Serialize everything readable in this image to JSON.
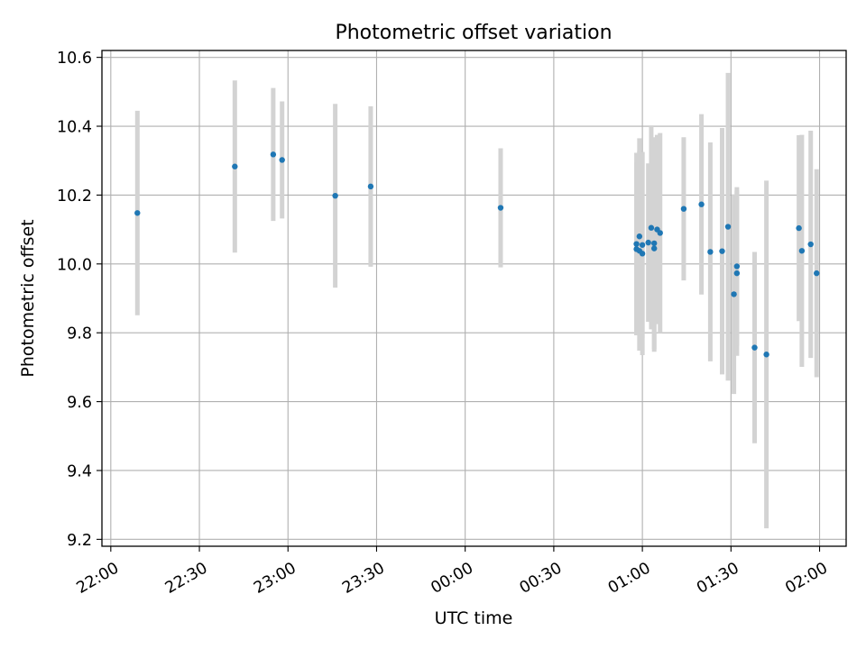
{
  "chart_data": {
    "type": "scatter",
    "title": "Photometric offset variation",
    "xlabel": "UTC time",
    "ylabel": "Photometric offset",
    "x_unit": "UTC time of day (HH:MM); ticks after 00:00 fall on the following day",
    "xlim": [
      "21:57",
      "24:00+02:09"
    ],
    "ylim": [
      9.18,
      10.62
    ],
    "x_ticks": [
      "22:00",
      "22:30",
      "23:00",
      "23:30",
      "00:00",
      "00:30",
      "01:00",
      "01:30",
      "02:00"
    ],
    "y_ticks": [
      "9.2",
      "9.4",
      "9.6",
      "9.8",
      "10.0",
      "10.2",
      "10.4",
      "10.6"
    ],
    "grid": true,
    "point_color": "#1f77b4",
    "errorbar_color": "#d3d3d3",
    "points": [
      {
        "x": "22:09",
        "y": 10.148,
        "err": 0.297
      },
      {
        "x": "22:42",
        "y": 10.283,
        "err": 0.25
      },
      {
        "x": "22:55",
        "y": 10.318,
        "err": 0.193
      },
      {
        "x": "22:58",
        "y": 10.302,
        "err": 0.17
      },
      {
        "x": "23:16",
        "y": 10.198,
        "err": 0.267
      },
      {
        "x": "23:28",
        "y": 10.225,
        "err": 0.233
      },
      {
        "x": "00:12",
        "y": 10.163,
        "err": 0.173
      },
      {
        "x": "00:58",
        "y": 10.043,
        "err": 0.25
      },
      {
        "x": "00:58",
        "y": 10.058,
        "err": 0.265
      },
      {
        "x": "00:59",
        "y": 10.08,
        "err": 0.285
      },
      {
        "x": "00:59",
        "y": 10.038,
        "err": 0.29
      },
      {
        "x": "01:00",
        "y": 10.03,
        "err": 0.295
      },
      {
        "x": "01:00",
        "y": 10.055,
        "err": 0.27
      },
      {
        "x": "01:02",
        "y": 10.062,
        "err": 0.23
      },
      {
        "x": "01:03",
        "y": 10.105,
        "err": 0.295
      },
      {
        "x": "01:04",
        "y": 10.06,
        "err": 0.308
      },
      {
        "x": "01:04",
        "y": 10.045,
        "err": 0.3
      },
      {
        "x": "01:05",
        "y": 10.1,
        "err": 0.275
      },
      {
        "x": "01:06",
        "y": 10.09,
        "err": 0.29
      },
      {
        "x": "01:14",
        "y": 10.16,
        "err": 0.208
      },
      {
        "x": "01:20",
        "y": 10.173,
        "err": 0.262
      },
      {
        "x": "01:23",
        "y": 10.035,
        "err": 0.318
      },
      {
        "x": "01:27",
        "y": 10.037,
        "err": 0.358
      },
      {
        "x": "01:29",
        "y": 10.108,
        "err": 0.447
      },
      {
        "x": "01:31",
        "y": 9.912,
        "err": 0.29
      },
      {
        "x": "01:32",
        "y": 9.993,
        "err": 0.23
      },
      {
        "x": "01:32",
        "y": 9.973,
        "err": 0.24
      },
      {
        "x": "01:38",
        "y": 9.757,
        "err": 0.278
      },
      {
        "x": "01:42",
        "y": 9.737,
        "err": 0.505
      },
      {
        "x": "01:53",
        "y": 10.104,
        "err": 0.27
      },
      {
        "x": "01:54",
        "y": 10.038,
        "err": 0.337
      },
      {
        "x": "01:57",
        "y": 10.057,
        "err": 0.33
      },
      {
        "x": "01:59",
        "y": 9.973,
        "err": 0.302
      }
    ]
  }
}
